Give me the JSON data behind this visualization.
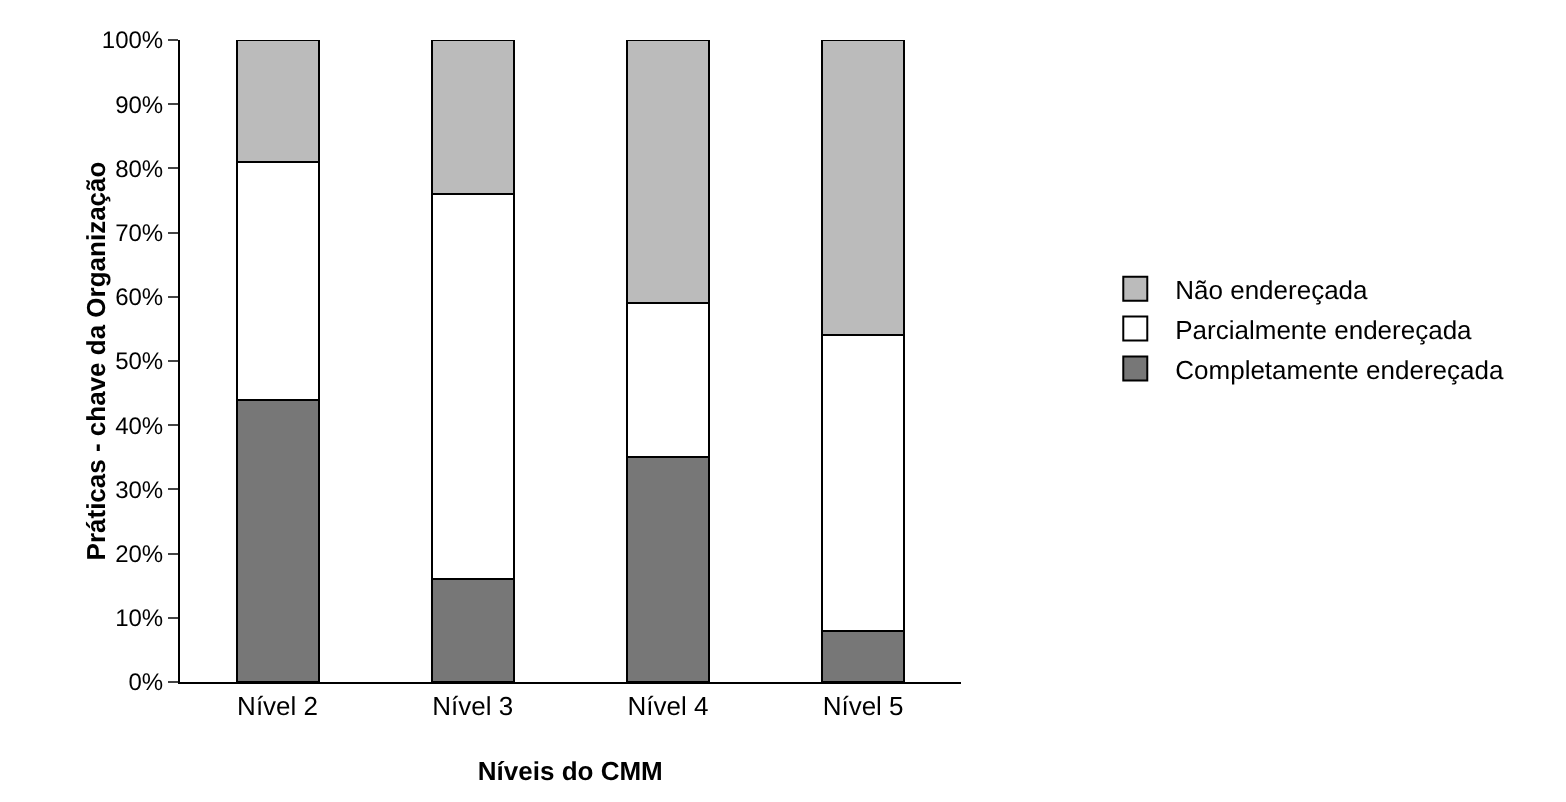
{
  "chart_data": {
    "type": "bar",
    "stacked": true,
    "xlabel": "Níveis do CMM",
    "ylabel": "Práticas - chave da Organização",
    "categories": [
      "Nível 2",
      "Nível 3",
      "Nível 4",
      "Nível 5"
    ],
    "series": [
      {
        "name": "Completamente endereçada",
        "color": "#777777",
        "values": [
          44,
          16,
          35,
          8
        ]
      },
      {
        "name": "Parcialmente endereçada",
        "color": "#ffffff",
        "values": [
          37,
          60,
          24,
          46
        ]
      },
      {
        "name": "Não endereçada",
        "color": "#bbbbbb",
        "values": [
          19,
          24,
          41,
          46
        ]
      }
    ],
    "ylim": [
      0,
      100
    ],
    "yticks": [
      {
        "value": 0,
        "label": "0%"
      },
      {
        "value": 10,
        "label": "10%"
      },
      {
        "value": 20,
        "label": "20%"
      },
      {
        "value": 30,
        "label": "30%"
      },
      {
        "value": 40,
        "label": "40%"
      },
      {
        "value": 50,
        "label": "50%"
      },
      {
        "value": 60,
        "label": "60%"
      },
      {
        "value": 70,
        "label": "70%"
      },
      {
        "value": 80,
        "label": "80%"
      },
      {
        "value": 90,
        "label": "90%"
      },
      {
        "value": 100,
        "label": "100%"
      }
    ],
    "grid": false,
    "legend": "right"
  }
}
